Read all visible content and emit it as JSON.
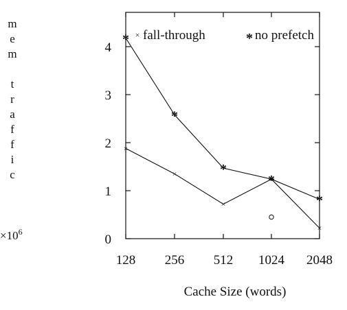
{
  "chart_data": {
    "type": "line",
    "categories": [
      "128",
      "256",
      "512",
      "1024",
      "2048"
    ],
    "xlabel": "Cache Size (words)",
    "ylabel_letters": [
      "m",
      "e",
      "m",
      "",
      "t",
      "r",
      "a",
      "f",
      "f",
      "i",
      "c"
    ],
    "yunit_base": "×10",
    "yunit_exp": "6",
    "ylim": [
      0,
      4.5
    ],
    "yticks": [
      "0",
      "1",
      "2",
      "3",
      "4"
    ],
    "series": [
      {
        "name": "fall-through",
        "marker": "×",
        "values": [
          1.88,
          1.35,
          0.72,
          1.24,
          0.22
        ]
      },
      {
        "name": "no prefetch",
        "marker": "*",
        "values": [
          4.18,
          2.58,
          1.47,
          1.24,
          0.82
        ]
      }
    ],
    "extra_points": [
      {
        "x": "1024",
        "y": 0.45,
        "marker": "circle"
      }
    ],
    "grid": false,
    "legend_position": "top"
  }
}
